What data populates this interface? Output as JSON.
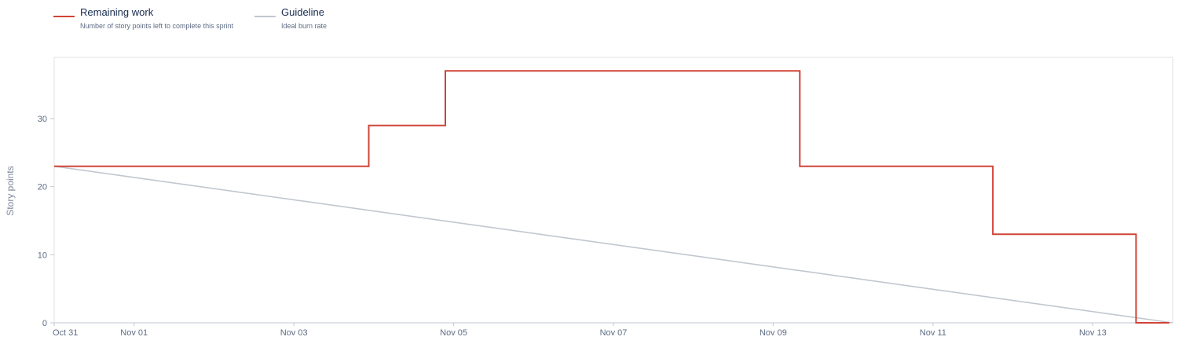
{
  "legend": {
    "remaining_title": "Remaining work",
    "remaining_desc": "Number of story points left to complete this sprint",
    "guideline_title": "Guideline",
    "guideline_desc": "Ideal burn rate"
  },
  "colors": {
    "remaining": "#d04437",
    "guideline": "#c1c7d0",
    "grid": "#dfe1e6",
    "axis": "#c1c7d0"
  },
  "chart_data": {
    "type": "line",
    "ylabel": "Story points",
    "xlabel": "",
    "ylim": [
      0,
      39
    ],
    "xlim": [
      "2023-10-31T00:00",
      "2023-11-14T00:00"
    ],
    "yticks": [
      0,
      10,
      20,
      30
    ],
    "xticks": [
      "Oct 31",
      "Nov 01",
      "Nov 03",
      "Nov 05",
      "Nov 07",
      "Nov 09",
      "Nov 11",
      "Nov 13"
    ],
    "xtick_dates": [
      "2023-10-31T00:00",
      "2023-11-01T00:00",
      "2023-11-03T00:00",
      "2023-11-05T00:00",
      "2023-11-07T00:00",
      "2023-11-09T00:00",
      "2023-11-11T00:00",
      "2023-11-13T00:00"
    ],
    "series": [
      {
        "name": "Remaining work",
        "step": true,
        "points": [
          {
            "x": "2023-10-31T00:00",
            "y": 23
          },
          {
            "x": "2023-11-03T22:30",
            "y": 29
          },
          {
            "x": "2023-11-04T21:30",
            "y": 37
          },
          {
            "x": "2023-11-09T08:00",
            "y": 23
          },
          {
            "x": "2023-11-11T18:00",
            "y": 13
          },
          {
            "x": "2023-11-13T13:00",
            "y": 0
          },
          {
            "x": "2023-11-13T23:00",
            "y": 0
          }
        ]
      },
      {
        "name": "Guideline",
        "step": false,
        "points": [
          {
            "x": "2023-10-31T00:00",
            "y": 23
          },
          {
            "x": "2023-11-14T00:00",
            "y": 0
          }
        ]
      }
    ]
  }
}
